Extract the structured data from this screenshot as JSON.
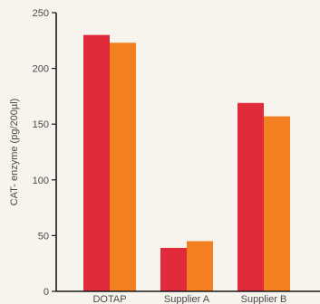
{
  "chart_data": {
    "type": "bar",
    "title": "",
    "xlabel": "",
    "ylabel": "CAT- enzyme (pg/200µl)",
    "ylim": [
      0,
      250
    ],
    "yticks": [
      0,
      50,
      100,
      150,
      200,
      250
    ],
    "categories": [
      "DOTAP",
      "Supplier A",
      "Supplier B"
    ],
    "series": [
      {
        "values": [
          230,
          39,
          169
        ],
        "color": "#e22b3a"
      },
      {
        "values": [
          223,
          45,
          157
        ],
        "color": "#f47f20"
      }
    ],
    "grid": false,
    "legend": "none"
  },
  "colors": {
    "background": "#f7f4ee",
    "axis": "#1a1a1a",
    "text": "#4a4a4a"
  }
}
